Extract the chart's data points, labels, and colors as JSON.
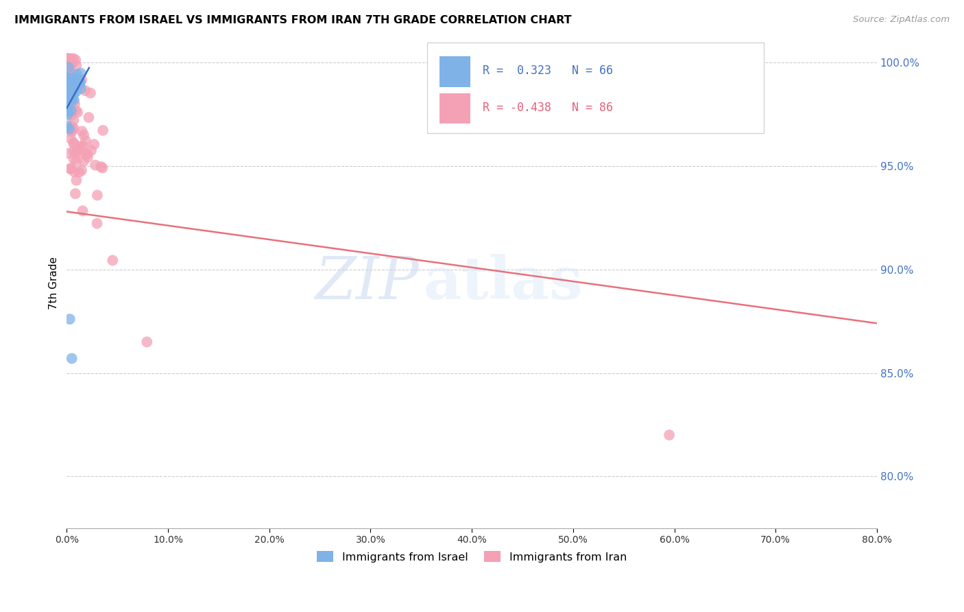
{
  "title": "IMMIGRANTS FROM ISRAEL VS IMMIGRANTS FROM IRAN 7TH GRADE CORRELATION CHART",
  "source": "Source: ZipAtlas.com",
  "ylabel": "7th Grade",
  "ytick_values": [
    1.0,
    0.95,
    0.9,
    0.85,
    0.8
  ],
  "xlim": [
    0.0,
    0.8
  ],
  "ylim": [
    0.775,
    1.012
  ],
  "legend_israel_r": "0.323",
  "legend_israel_n": "66",
  "legend_iran_r": "-0.438",
  "legend_iran_n": "86",
  "israel_color": "#7fb3e8",
  "iran_color": "#f4a0b5",
  "israel_line_color": "#3a6bc8",
  "iran_line_color": "#e8707a",
  "watermark_zip": "ZIP",
  "watermark_atlas": "atlas",
  "iran_line_x0": 0.0,
  "iran_line_y0": 0.928,
  "iran_line_x1": 0.8,
  "iran_line_y1": 0.874,
  "israel_line_x0": 0.0,
  "israel_line_y0": 0.978,
  "israel_line_x1": 0.022,
  "israel_line_y1": 0.9975
}
